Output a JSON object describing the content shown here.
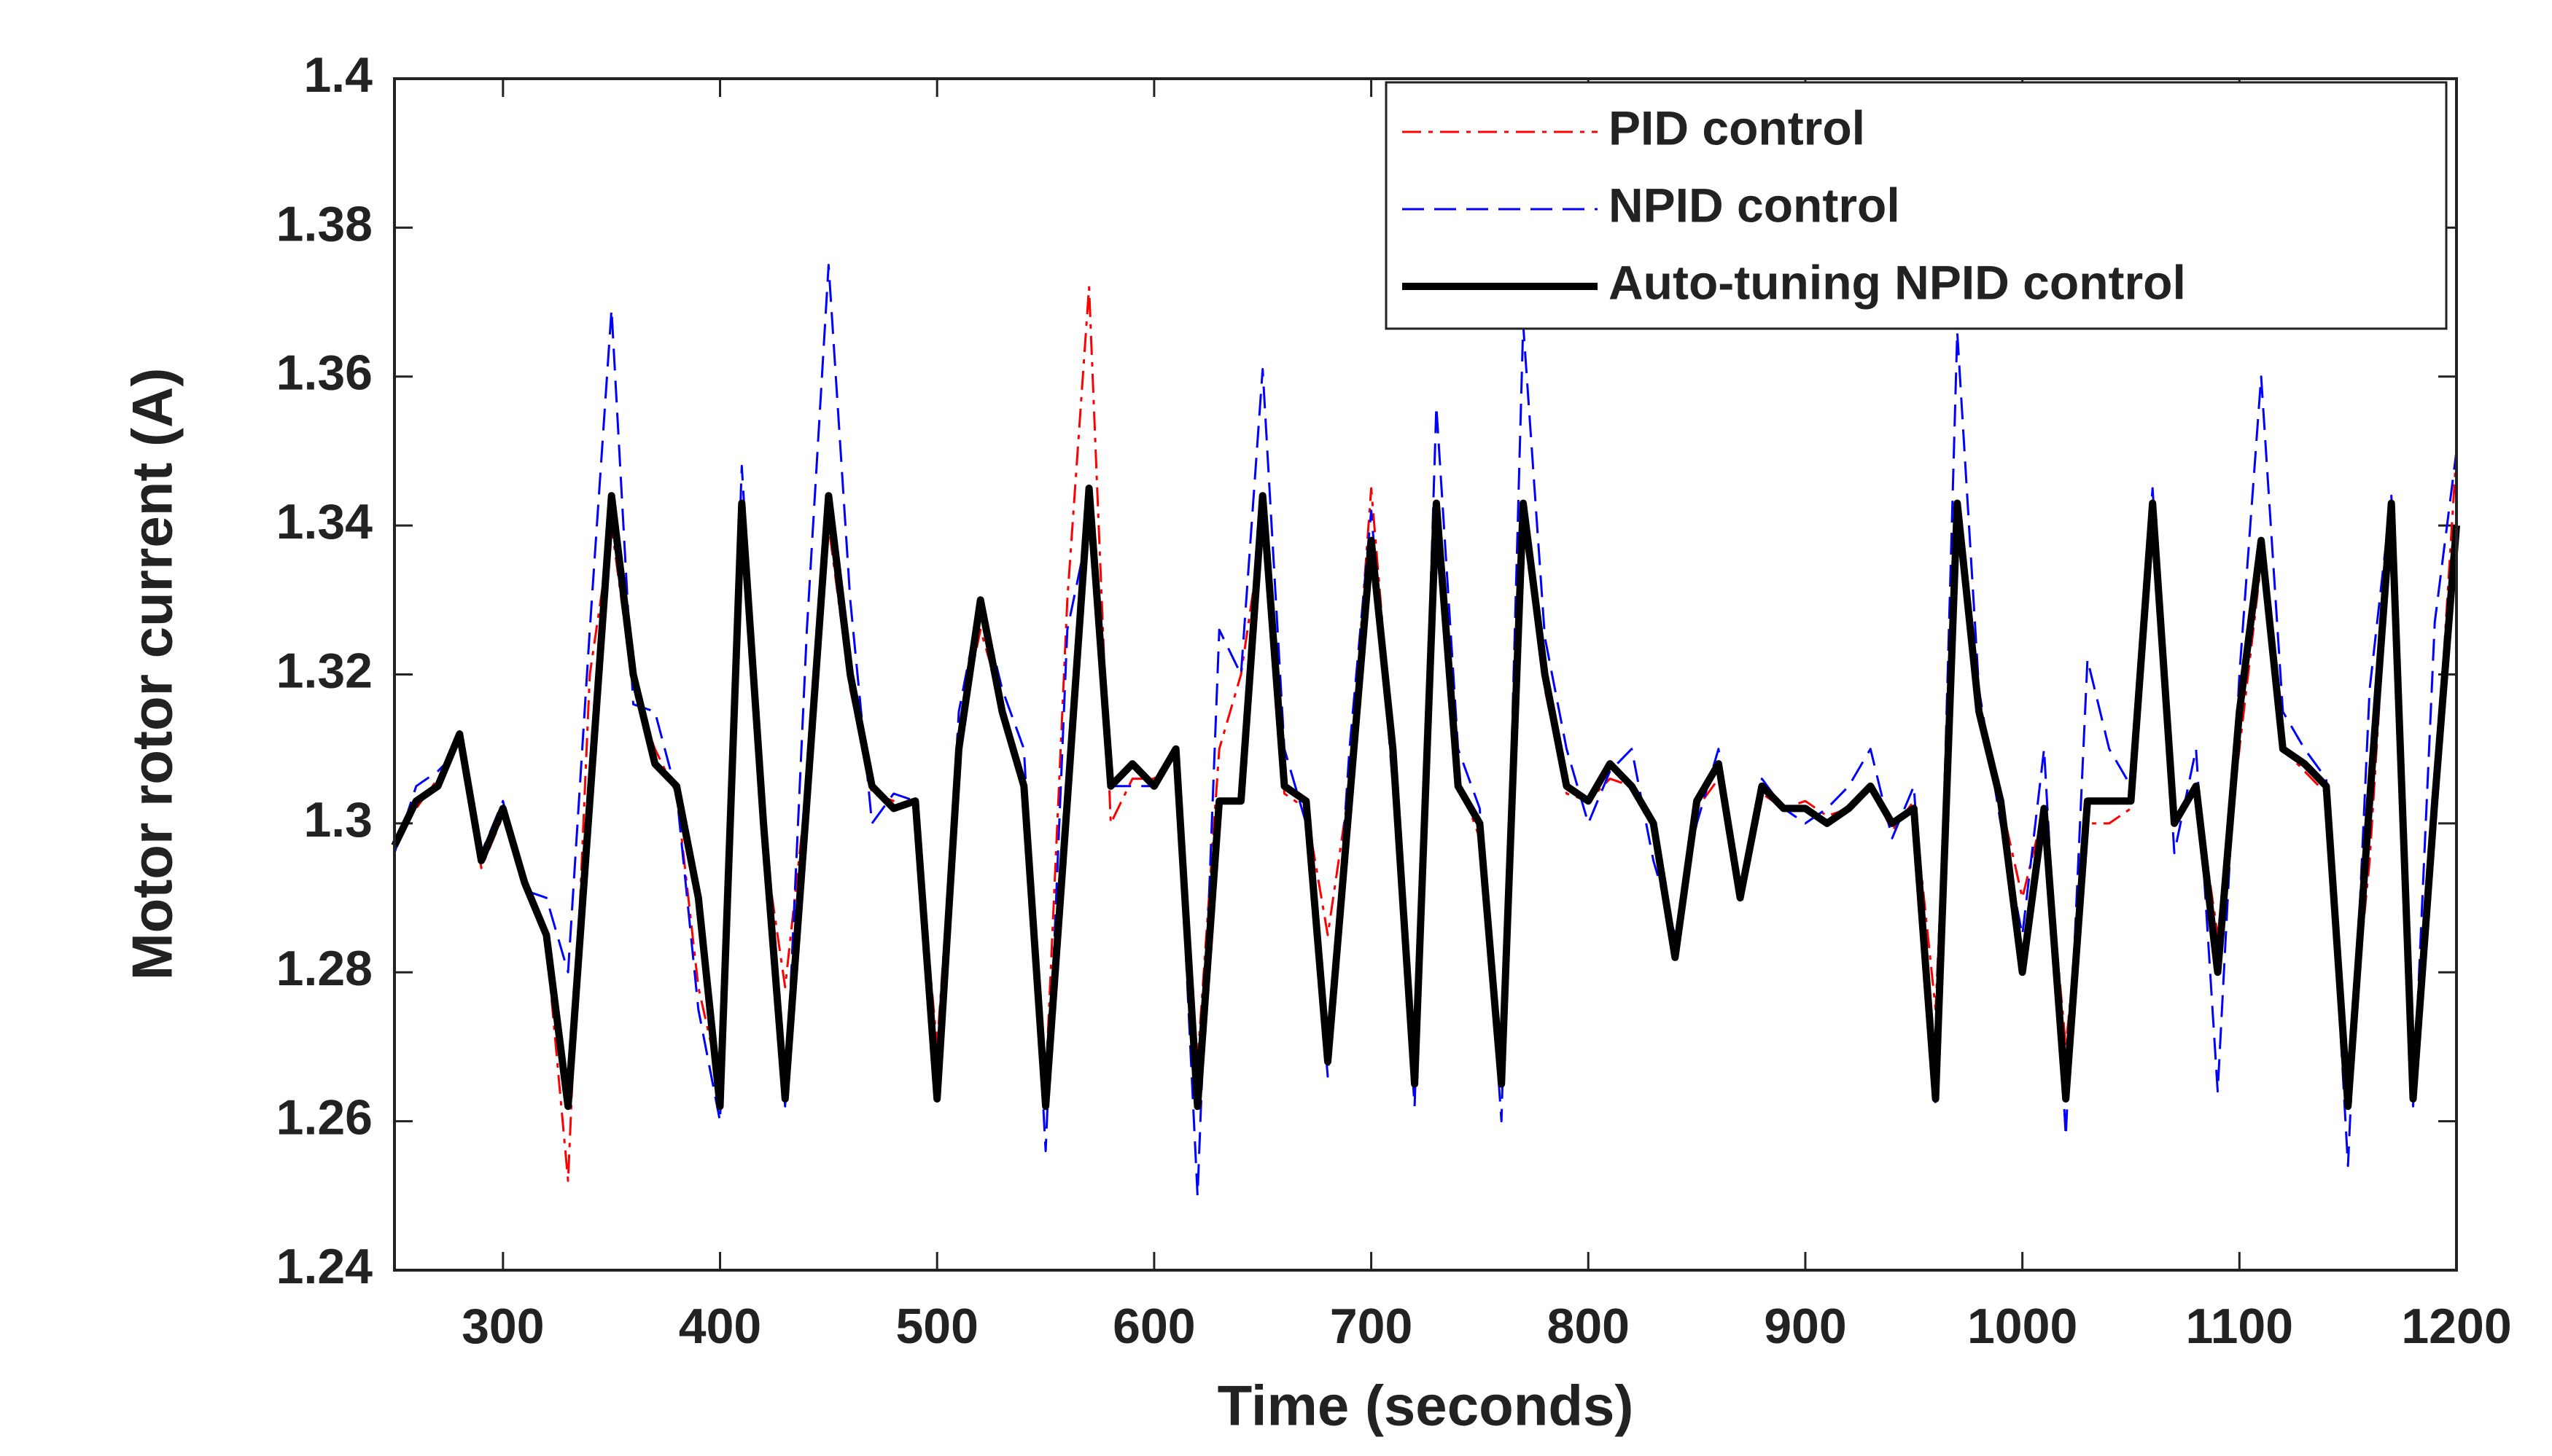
{
  "chart_data": {
    "type": "line",
    "xlabel": "Time (seconds)",
    "ylabel": "Motor rotor current (A)",
    "xlim": [
      250,
      1200
    ],
    "xticks": [
      300,
      400,
      500,
      600,
      700,
      800,
      900,
      1000,
      1100,
      1200
    ],
    "ylim": [
      1.24,
      1.4
    ],
    "yticks": [
      1.24,
      1.26,
      1.28,
      1.3,
      1.32,
      1.34,
      1.36,
      1.38,
      1.4
    ],
    "legend": "upper right",
    "x": [
      250,
      260,
      270,
      280,
      290,
      300,
      310,
      320,
      330,
      340,
      350,
      360,
      370,
      380,
      390,
      400,
      410,
      420,
      430,
      440,
      450,
      460,
      470,
      480,
      490,
      500,
      510,
      520,
      530,
      540,
      550,
      560,
      570,
      580,
      590,
      600,
      610,
      620,
      630,
      640,
      650,
      660,
      670,
      680,
      690,
      700,
      710,
      720,
      730,
      740,
      750,
      760,
      770,
      780,
      790,
      800,
      810,
      820,
      830,
      840,
      850,
      860,
      870,
      880,
      890,
      900,
      910,
      920,
      930,
      940,
      950,
      960,
      970,
      980,
      990,
      1000,
      1010,
      1020,
      1030,
      1040,
      1050,
      1060,
      1070,
      1080,
      1090,
      1100,
      1110,
      1120,
      1130,
      1140,
      1150,
      1160,
      1170,
      1180,
      1190,
      1200
    ],
    "series": [
      {
        "name": "PID control",
        "color": "#ff0000",
        "dash": "dashdot",
        "values": [
          1.298,
          1.302,
          1.306,
          1.311,
          1.294,
          1.301,
          1.293,
          1.284,
          1.252,
          1.32,
          1.34,
          1.318,
          1.31,
          1.304,
          1.278,
          1.265,
          1.338,
          1.298,
          1.278,
          1.305,
          1.34,
          1.318,
          1.304,
          1.303,
          1.302,
          1.27,
          1.312,
          1.326,
          1.316,
          1.306,
          1.265,
          1.33,
          1.372,
          1.3,
          1.306,
          1.306,
          1.31,
          1.268,
          1.31,
          1.32,
          1.34,
          1.304,
          1.302,
          1.285,
          1.305,
          1.345,
          1.31,
          1.27,
          1.34,
          1.306,
          1.298,
          1.27,
          1.34,
          1.318,
          1.304,
          1.303,
          1.306,
          1.305,
          1.3,
          1.284,
          1.302,
          1.306,
          1.292,
          1.304,
          1.302,
          1.303,
          1.301,
          1.302,
          1.305,
          1.299,
          1.303,
          1.275,
          1.34,
          1.314,
          1.303,
          1.29,
          1.302,
          1.27,
          1.3,
          1.3,
          1.302,
          1.34,
          1.3,
          1.305,
          1.285,
          1.31,
          1.335,
          1.31,
          1.307,
          1.304,
          1.265,
          1.295,
          1.342,
          1.268,
          1.303,
          1.35
        ]
      },
      {
        "name": "NPID control",
        "color": "#0000ff",
        "dash": "dashed",
        "values": [
          1.296,
          1.305,
          1.307,
          1.31,
          1.296,
          1.303,
          1.291,
          1.29,
          1.28,
          1.326,
          1.369,
          1.316,
          1.315,
          1.304,
          1.275,
          1.26,
          1.348,
          1.3,
          1.262,
          1.326,
          1.375,
          1.33,
          1.3,
          1.304,
          1.303,
          1.265,
          1.315,
          1.33,
          1.318,
          1.31,
          1.256,
          1.326,
          1.34,
          1.305,
          1.305,
          1.305,
          1.31,
          1.25,
          1.326,
          1.32,
          1.361,
          1.31,
          1.3,
          1.266,
          1.31,
          1.342,
          1.305,
          1.262,
          1.356,
          1.31,
          1.302,
          1.26,
          1.367,
          1.325,
          1.31,
          1.3,
          1.307,
          1.31,
          1.295,
          1.285,
          1.3,
          1.31,
          1.29,
          1.306,
          1.302,
          1.3,
          1.302,
          1.305,
          1.31,
          1.298,
          1.305,
          1.262,
          1.366,
          1.318,
          1.3,
          1.285,
          1.31,
          1.258,
          1.322,
          1.31,
          1.305,
          1.345,
          1.296,
          1.31,
          1.264,
          1.32,
          1.36,
          1.315,
          1.31,
          1.306,
          1.254,
          1.318,
          1.344,
          1.262,
          1.327,
          1.35
        ]
      },
      {
        "name": "Auto-tuning NPID control",
        "color": "#000000",
        "dash": "solid",
        "values": [
          1.297,
          1.303,
          1.305,
          1.312,
          1.295,
          1.302,
          1.292,
          1.285,
          1.262,
          1.303,
          1.344,
          1.32,
          1.308,
          1.305,
          1.29,
          1.262,
          1.343,
          1.3,
          1.263,
          1.303,
          1.344,
          1.32,
          1.305,
          1.302,
          1.303,
          1.263,
          1.31,
          1.33,
          1.315,
          1.305,
          1.262,
          1.303,
          1.345,
          1.305,
          1.308,
          1.305,
          1.31,
          1.262,
          1.303,
          1.303,
          1.344,
          1.305,
          1.303,
          1.268,
          1.303,
          1.338,
          1.31,
          1.265,
          1.343,
          1.305,
          1.3,
          1.265,
          1.343,
          1.32,
          1.305,
          1.303,
          1.308,
          1.305,
          1.3,
          1.282,
          1.303,
          1.308,
          1.29,
          1.305,
          1.302,
          1.302,
          1.3,
          1.302,
          1.305,
          1.3,
          1.302,
          1.263,
          1.343,
          1.315,
          1.303,
          1.28,
          1.302,
          1.263,
          1.303,
          1.303,
          1.303,
          1.343,
          1.3,
          1.305,
          1.28,
          1.315,
          1.338,
          1.31,
          1.308,
          1.305,
          1.262,
          1.303,
          1.343,
          1.263,
          1.303,
          1.34
        ]
      }
    ]
  }
}
